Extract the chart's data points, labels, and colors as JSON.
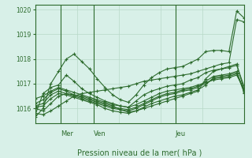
{
  "title": "Pression niveau de la mer( hPa )",
  "background_color": "#d8f0e8",
  "grid_color": "#b8d8c8",
  "line_color": "#2d6b2d",
  "ylim": [
    1015.4,
    1020.2
  ],
  "yticks": [
    1016,
    1017,
    1018,
    1019,
    1020
  ],
  "day_labels": [
    "Mer",
    "Ven",
    "Jeu"
  ],
  "day_positions": [
    0.12,
    0.28,
    0.67
  ],
  "series": [
    [
      1015.8,
      1015.75,
      1015.9,
      1016.1,
      1016.3,
      1016.5,
      1016.6,
      1016.65,
      1016.7,
      1016.75,
      1016.8,
      1016.85,
      1016.9,
      1017.0,
      1017.1,
      1017.15,
      1017.2,
      1017.25,
      1017.3,
      1017.35,
      1017.4,
      1017.5,
      1017.6,
      1017.7,
      1017.8,
      1017.85,
      1019.6,
      1019.5
    ],
    [
      1016.0,
      1015.9,
      1016.2,
      1016.5,
      1016.6,
      1016.55,
      1016.5,
      1016.4,
      1016.3,
      1016.2,
      1016.1,
      1015.95,
      1015.85,
      1015.9,
      1016.0,
      1016.1,
      1016.2,
      1016.3,
      1016.4,
      1016.5,
      1016.6,
      1016.7,
      1017.2,
      1017.5,
      1017.6,
      1017.7,
      1017.8,
      1016.7
    ],
    [
      1016.05,
      1016.1,
      1016.4,
      1016.6,
      1016.55,
      1016.45,
      1016.35,
      1016.25,
      1016.15,
      1016.0,
      1015.9,
      1015.85,
      1015.8,
      1015.9,
      1016.05,
      1016.2,
      1016.3,
      1016.4,
      1016.5,
      1016.55,
      1016.65,
      1016.75,
      1016.95,
      1017.25,
      1017.3,
      1017.35,
      1017.45,
      1016.6
    ],
    [
      1016.1,
      1016.2,
      1016.55,
      1016.7,
      1016.6,
      1016.5,
      1016.4,
      1016.3,
      1016.2,
      1016.1,
      1016.0,
      1015.95,
      1015.9,
      1016.0,
      1016.15,
      1016.3,
      1016.45,
      1016.55,
      1016.6,
      1016.7,
      1016.75,
      1016.85,
      1017.1,
      1017.3,
      1017.35,
      1017.4,
      1017.5,
      1016.65
    ],
    [
      1016.2,
      1016.35,
      1016.65,
      1016.8,
      1016.7,
      1016.55,
      1016.45,
      1016.35,
      1016.25,
      1016.15,
      1016.05,
      1016.0,
      1015.95,
      1016.05,
      1016.2,
      1016.35,
      1016.5,
      1016.6,
      1016.65,
      1016.75,
      1016.8,
      1016.9,
      1017.0,
      1017.2,
      1017.25,
      1017.3,
      1017.4,
      1016.7
    ],
    [
      1016.4,
      1016.5,
      1016.7,
      1016.85,
      1016.75,
      1016.65,
      1016.55,
      1016.45,
      1016.35,
      1016.25,
      1016.15,
      1016.1,
      1016.05,
      1016.15,
      1016.3,
      1016.45,
      1016.6,
      1016.7,
      1016.75,
      1016.8,
      1016.85,
      1016.95,
      1017.05,
      1017.15,
      1017.2,
      1017.25,
      1017.35,
      1016.75
    ],
    [
      1015.75,
      1016.6,
      1016.85,
      1016.95,
      1017.35,
      1017.1,
      1016.8,
      1016.6,
      1016.45,
      1016.3,
      1016.2,
      1016.1,
      1016.05,
      1016.3,
      1016.55,
      1016.7,
      1016.8,
      1016.9,
      1016.95,
      1017.0,
      1017.15,
      1017.25,
      1017.45,
      1017.55,
      1017.6,
      1017.65,
      1017.75,
      1016.85
    ],
    [
      1015.65,
      1016.0,
      1017.0,
      1017.5,
      1018.0,
      1018.2,
      1017.9,
      1017.6,
      1017.2,
      1016.85,
      1016.55,
      1016.35,
      1016.25,
      1016.55,
      1016.95,
      1017.25,
      1017.45,
      1017.6,
      1017.65,
      1017.7,
      1017.85,
      1018.0,
      1018.3,
      1018.35,
      1018.35,
      1018.3,
      1019.95,
      1019.65
    ]
  ],
  "n_points": 28
}
